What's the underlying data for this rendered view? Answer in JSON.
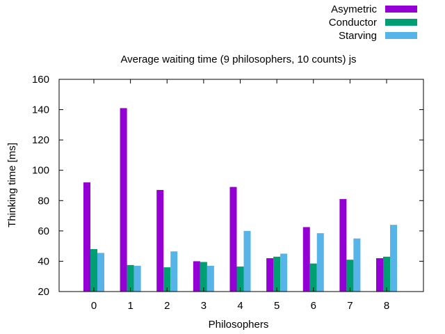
{
  "chart_data": {
    "type": "bar",
    "title": "Average waiting time (9 philosophers, 10 counts) js",
    "xlabel": "Philosophers",
    "ylabel": "Thinking time [ms]",
    "ylim": [
      20,
      160
    ],
    "yticks": [
      20,
      40,
      60,
      80,
      100,
      120,
      140,
      160
    ],
    "categories": [
      "0",
      "1",
      "2",
      "3",
      "4",
      "5",
      "6",
      "7",
      "8"
    ],
    "legend_position": "top-right",
    "grid": false,
    "series": [
      {
        "name": "Asymetric",
        "color": "#9400d3",
        "values": [
          92,
          141,
          87,
          40,
          89,
          42,
          62.5,
          81,
          42
        ]
      },
      {
        "name": "Conductor",
        "color": "#009e73",
        "values": [
          48,
          37.5,
          36,
          39.5,
          36.5,
          43,
          38.5,
          41,
          43
        ]
      },
      {
        "name": "Starving",
        "color": "#56b4e9",
        "values": [
          45.5,
          37,
          46.5,
          37,
          60,
          45,
          58.5,
          55,
          64
        ]
      }
    ]
  }
}
